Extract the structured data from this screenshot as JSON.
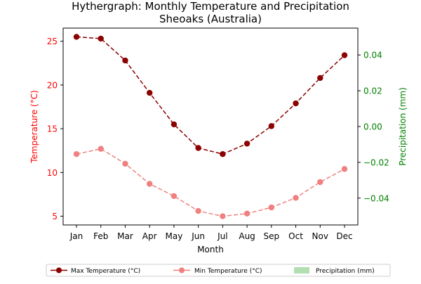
{
  "chart_data": {
    "type": "line",
    "title": "Hythergraph: Monthly Temperature and Precipitation",
    "subtitle": "Sheoaks (Australia)",
    "xlabel": "Month",
    "ylabel": "Temperature (°C)",
    "y2label": "Precipitation (mm)",
    "categories": [
      "Jan",
      "Feb",
      "Mar",
      "Apr",
      "May",
      "Jun",
      "Jul",
      "Aug",
      "Sep",
      "Oct",
      "Nov",
      "Dec"
    ],
    "ylim": [
      4.0,
      26.5
    ],
    "y2lim": [
      -0.055,
      0.055
    ],
    "yticks": [
      5,
      10,
      15,
      20,
      25
    ],
    "y2ticks": [
      "−0.04",
      "−0.02",
      "0.00",
      "0.02",
      "0.04"
    ],
    "y2tick_values": [
      -0.04,
      -0.02,
      0.0,
      0.02,
      0.04
    ],
    "grid": false,
    "legend_position": "bottom-center",
    "series": [
      {
        "name": "Max Temperature (°C)",
        "color": "#8b0000",
        "style": "dashed",
        "marker": "circle",
        "axis": "left",
        "values": [
          25.5,
          25.3,
          22.8,
          19.1,
          15.5,
          12.8,
          12.1,
          13.3,
          15.3,
          17.9,
          20.8,
          23.4
        ]
      },
      {
        "name": "Min Temperature (°C)",
        "color": "#f08080",
        "style": "dashed",
        "marker": "circle",
        "axis": "left",
        "values": [
          12.1,
          12.7,
          11.0,
          8.7,
          7.3,
          5.6,
          5.0,
          5.3,
          6.0,
          7.1,
          8.9,
          10.4
        ]
      },
      {
        "name": "Precipitation (mm)",
        "color": "#b2dfb2",
        "style": "bar",
        "axis": "right",
        "values": [
          0,
          0,
          0,
          0,
          0,
          0,
          0,
          0,
          0,
          0,
          0,
          0
        ]
      }
    ],
    "colors": {
      "left_axis": "#ff0000",
      "right_axis": "#008000",
      "axes": "#000000"
    }
  }
}
